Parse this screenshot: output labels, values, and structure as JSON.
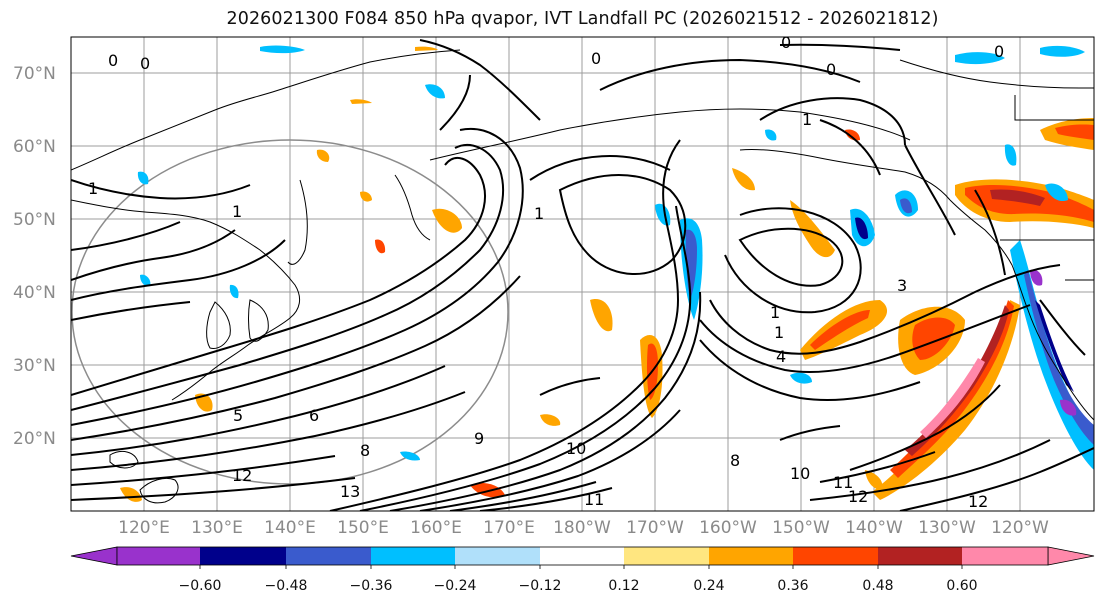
{
  "title": "2026021300 F084 850 hPa qvapor, IVT Landfall PC (2026021512 - 2026021812)",
  "map": {
    "lat_labels": [
      "70°N",
      "60°N",
      "50°N",
      "40°N",
      "30°N",
      "20°N"
    ],
    "lon_labels": [
      "120°E",
      "130°E",
      "140°E",
      "150°E",
      "160°E",
      "170°E",
      "180°W",
      "170°W",
      "160°W",
      "150°W",
      "140°W",
      "130°W",
      "120°W"
    ],
    "contour_labels": [
      "0",
      "0",
      "0",
      "0",
      "0",
      "0",
      "1",
      "1",
      "1",
      "1",
      "1",
      "1",
      "3",
      "4",
      "5",
      "6",
      "8",
      "8",
      "9",
      "10",
      "10",
      "11",
      "11",
      "12",
      "12",
      "12",
      "13"
    ]
  },
  "colorbar": {
    "labels": [
      "−0.60",
      "−0.48",
      "−0.36",
      "−0.24",
      "−0.12",
      "0.12",
      "0.24",
      "0.36",
      "0.48",
      "0.60"
    ],
    "colors": [
      "#9932cc",
      "#00008b",
      "#3a5bcd",
      "#00bfff",
      "#b0e0fa",
      "#ffffff",
      "#ffe680",
      "#ffa500",
      "#ff4500",
      "#b22222",
      "#ff88aa"
    ],
    "extend": "both"
  }
}
